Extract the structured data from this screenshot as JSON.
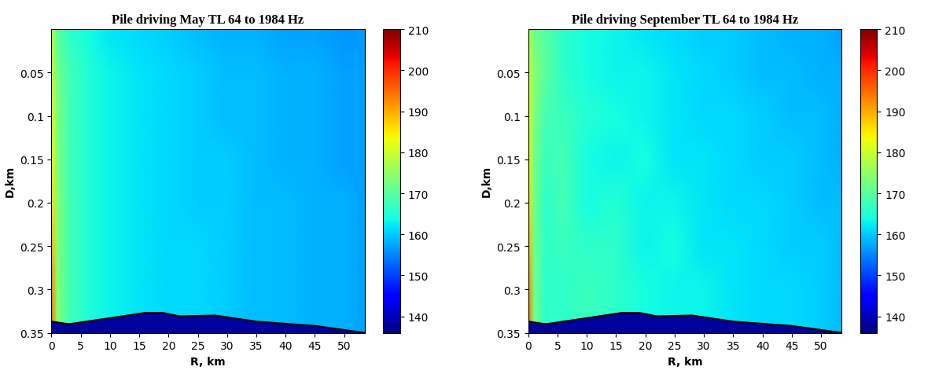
{
  "chart_data": [
    {
      "type": "heatmap",
      "title": "Pile driving May TL 64 to 1984 Hz",
      "x_label": "R, km",
      "y_label": "D,km",
      "xlim": [
        0,
        53.5
      ],
      "ylim": [
        0.35,
        0
      ],
      "xticks": [
        0,
        5,
        10,
        15,
        20,
        25,
        30,
        35,
        40,
        45,
        50
      ],
      "yticks": [
        0.05,
        0.1,
        0.15,
        0.2,
        0.25,
        0.3,
        0.35
      ],
      "range": [
        0,
        1,
        3,
        6,
        10,
        15,
        20,
        25,
        30,
        35,
        40,
        45,
        50,
        53.5
      ],
      "depth": [
        0,
        0.05,
        0.1,
        0.15,
        0.2,
        0.25,
        0.3,
        0.35
      ],
      "cells": [
        [
          178,
          170,
          166,
          164,
          162,
          161,
          160,
          159,
          158,
          158,
          157,
          157,
          156,
          156
        ],
        [
          180,
          172,
          168,
          165,
          163,
          162,
          161,
          160,
          159,
          159,
          158,
          158,
          157,
          157
        ],
        [
          182,
          173,
          168,
          165,
          163,
          162,
          161,
          160,
          159,
          159,
          158,
          158,
          157,
          157
        ],
        [
          184,
          173,
          168,
          165,
          163,
          162,
          161,
          160,
          160,
          159,
          158,
          158,
          157,
          157
        ],
        [
          186,
          174,
          168,
          165,
          163,
          162,
          161,
          160,
          160,
          159,
          159,
          158,
          158,
          157
        ],
        [
          189,
          174,
          168,
          165,
          163,
          162,
          161,
          161,
          160,
          159,
          159,
          158,
          158,
          157
        ],
        [
          193,
          174,
          168,
          165,
          163,
          162,
          161,
          161,
          160,
          159,
          159,
          158,
          158,
          157
        ],
        [
          195,
          174,
          168,
          165,
          163,
          162,
          161,
          161,
          160,
          159,
          159,
          158,
          158,
          157
        ]
      ],
      "colorbar_lim": [
        136,
        210
      ],
      "colorbar_ticks": [
        140,
        150,
        160,
        170,
        180,
        190,
        200,
        210
      ],
      "seafloor_range": [
        0,
        3,
        10,
        16,
        19,
        22,
        28,
        35,
        45,
        53.5
      ],
      "seafloor_depth": [
        0.337,
        0.34,
        0.333,
        0.327,
        0.327,
        0.331,
        0.33,
        0.337,
        0.342,
        0.35
      ],
      "sediment_tl": 138
    },
    {
      "type": "heatmap",
      "title": "Pile driving September TL 64 to 1984 Hz",
      "x_label": "R, km",
      "y_label": "D,km",
      "xlim": [
        0,
        53.5
      ],
      "ylim": [
        0.35,
        0
      ],
      "xticks": [
        0,
        5,
        10,
        15,
        20,
        25,
        30,
        35,
        40,
        45,
        50
      ],
      "yticks": [
        0.05,
        0.1,
        0.15,
        0.2,
        0.25,
        0.3,
        0.35
      ],
      "range": [
        0,
        1,
        3,
        6,
        10,
        15,
        20,
        25,
        30,
        35,
        40,
        45,
        50,
        53.5
      ],
      "depth": [
        0,
        0.05,
        0.1,
        0.15,
        0.2,
        0.25,
        0.3,
        0.35
      ],
      "cells": [
        [
          178,
          172,
          169,
          166,
          164,
          163,
          162,
          161,
          160,
          160,
          159,
          158,
          158,
          157
        ],
        [
          180,
          174,
          170,
          166,
          164,
          163,
          163,
          162,
          161,
          160,
          159,
          159,
          158,
          158
        ],
        [
          182,
          173,
          168,
          167,
          165,
          164,
          163,
          162,
          161,
          161,
          160,
          159,
          159,
          158
        ],
        [
          184,
          172,
          167,
          168,
          164,
          163,
          164,
          162,
          162,
          161,
          160,
          160,
          159,
          158
        ],
        [
          186,
          172,
          166,
          168,
          164,
          165,
          163,
          163,
          162,
          161,
          161,
          160,
          159,
          159
        ],
        [
          189,
          172,
          166,
          167,
          166,
          166,
          163,
          164,
          162,
          162,
          161,
          160,
          160,
          159
        ],
        [
          193,
          172,
          166,
          166,
          167,
          166,
          164,
          163,
          163,
          162,
          161,
          161,
          160,
          159
        ],
        [
          195,
          172,
          166,
          166,
          167,
          166,
          164,
          163,
          163,
          162,
          161,
          161,
          160,
          159
        ]
      ],
      "colorbar_lim": [
        136,
        210
      ],
      "colorbar_ticks": [
        140,
        150,
        160,
        170,
        180,
        190,
        200,
        210
      ],
      "seafloor_range": [
        0,
        3,
        10,
        16,
        19,
        22,
        28,
        35,
        45,
        53.5
      ],
      "seafloor_depth": [
        0.337,
        0.34,
        0.333,
        0.327,
        0.327,
        0.331,
        0.33,
        0.337,
        0.342,
        0.35
      ],
      "sediment_tl": 138
    }
  ]
}
